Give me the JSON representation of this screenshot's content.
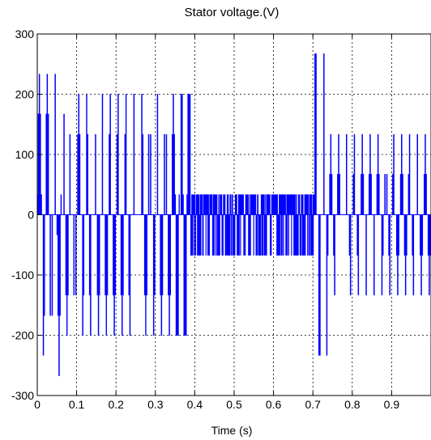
{
  "chart_data": {
    "type": "line",
    "title": "Stator voltage.(V)",
    "xlabel": "Time (s)",
    "ylabel": "",
    "xlim": [
      0,
      1.0
    ],
    "ylim": [
      -300,
      300
    ],
    "xticks": [
      0,
      0.1,
      0.2,
      0.3,
      0.4,
      0.5,
      0.6,
      0.7,
      0.8,
      0.9
    ],
    "xtick_labels": [
      "0",
      "0.1",
      "0.2",
      "0.3",
      "0.4",
      "0.5",
      "0.6",
      "0.7",
      "0.8",
      "0.9"
    ],
    "yticks": [
      -300,
      -200,
      -100,
      0,
      100,
      200,
      300
    ],
    "ytick_labels": [
      "-300",
      "-200",
      "-100",
      "0",
      "100",
      "200",
      "300"
    ],
    "grid": true,
    "legend": "none",
    "series": [
      {
        "color": "#0000ff",
        "segments": [
          {
            "t_start": 0.0,
            "t_end": 0.07,
            "high": 233,
            "low": -267,
            "note_levels": [
              233,
              167,
              100,
              33,
              -33,
              -100,
              -167,
              -233,
              -267
            ]
          },
          {
            "t_start": 0.07,
            "t_end": 0.35,
            "high": 200,
            "low": -200,
            "levels": [
              200,
              167,
              133,
              67,
              0,
              -67,
              -133,
              -167,
              -200
            ]
          },
          {
            "t_start": 0.35,
            "t_end": 0.39,
            "high": 200,
            "low": -200,
            "levels": [
              200,
              33,
              -67,
              -200
            ]
          },
          {
            "t_start": 0.39,
            "t_end": 0.705,
            "high": 33,
            "low": -67,
            "levels": [
              33,
              -67
            ]
          },
          {
            "t_start": 0.705,
            "t_end": 0.735,
            "high": 267,
            "low": -233,
            "levels": [
              267,
              -233
            ]
          },
          {
            "t_start": 0.735,
            "t_end": 1.0,
            "high": 133,
            "low": -133,
            "levels": [
              133,
              67,
              0,
              -67,
              -133
            ]
          }
        ]
      }
    ]
  }
}
